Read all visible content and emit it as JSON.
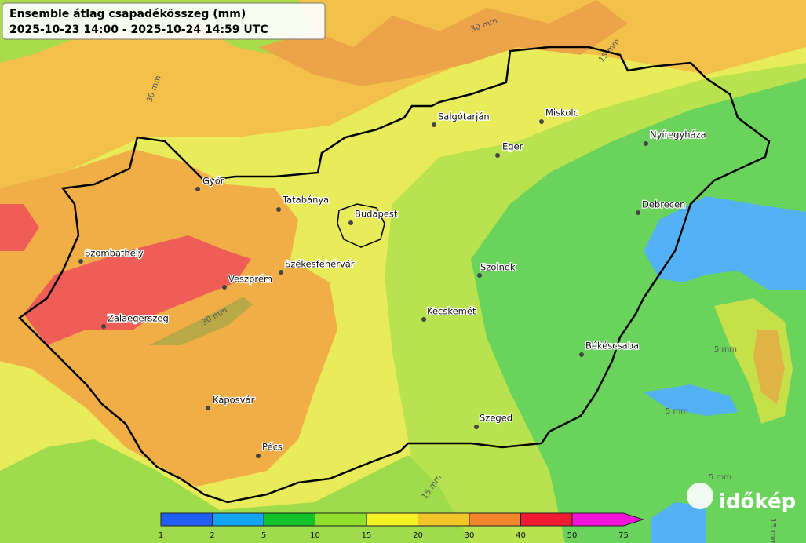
{
  "title": {
    "line1": "Ensemble átlag csapadékösszeg (mm)",
    "line2": "2025-10-23 14:00 - 2025-10-24 14:59 UTC"
  },
  "cities": [
    "Győr",
    "Tatabánya",
    "Budapest",
    "Salgótarján",
    "Miskolc",
    "Eger",
    "Nyíregyháza",
    "Debrecen",
    "Szombathely",
    "Székesfehérvár",
    "Veszprém",
    "Zalaegerszeg",
    "Szolnok",
    "Kecskemét",
    "Békéscsaba",
    "Kaposvár",
    "Szeged",
    "Pécs"
  ],
  "contour_labels": [
    "30 mm",
    "15 mm",
    "30 mm",
    "30 mm",
    "5 mm",
    "5 mm",
    "5 mm",
    "15 mm",
    "15 mm"
  ],
  "legend": {
    "ticks": [
      1,
      2,
      5,
      10,
      15,
      20,
      30,
      40,
      50,
      75
    ],
    "colors": [
      "#1f5ff2",
      "#13a5f2",
      "#14c22a",
      "#8fdf2c",
      "#f5f226",
      "#f3c62a",
      "#f3862a",
      "#f01a32",
      "#f213d8"
    ]
  },
  "logo": "időkép"
}
